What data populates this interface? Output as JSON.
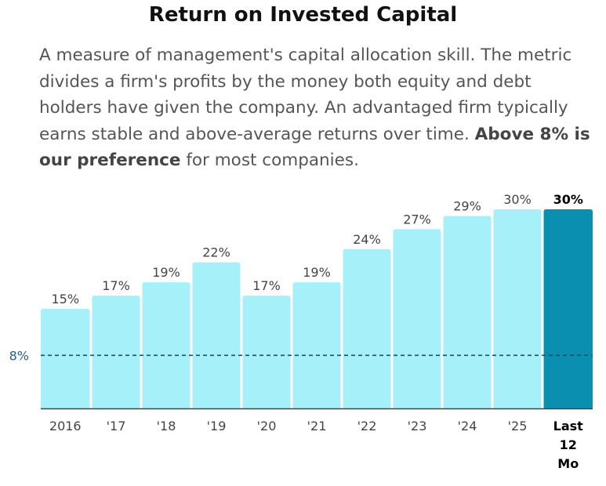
{
  "title": "Return on Invested Capital",
  "description": {
    "text_before": "A measure of management's capital allocation skill. The metric divides a firm's profits by the money both equity and debt holders have given the company. An advantaged firm typically earns stable and above-average returns over time. ",
    "bold_text": "Above 8% is our preference",
    "text_after": " for most companies."
  },
  "chart_data": {
    "type": "bar",
    "title": "Return on Invested Capital",
    "xlabel": "",
    "ylabel": "",
    "ylim": [
      0,
      30
    ],
    "grid": false,
    "categories": [
      "2016",
      "'17",
      "'18",
      "'19",
      "'20",
      "'21",
      "'22",
      "'23",
      "'24",
      "'25",
      "Last 12 Mo"
    ],
    "category_lines": [
      [
        "2016"
      ],
      [
        "'17"
      ],
      [
        "'18"
      ],
      [
        "'19"
      ],
      [
        "'20"
      ],
      [
        "'21"
      ],
      [
        "'22"
      ],
      [
        "'23"
      ],
      [
        "'24"
      ],
      [
        "'25"
      ],
      [
        "Last",
        "12",
        "Mo"
      ]
    ],
    "values": [
      15,
      17,
      19,
      22,
      17,
      19,
      24,
      27,
      29,
      30,
      30
    ],
    "value_labels": [
      "15%",
      "17%",
      "19%",
      "22%",
      "17%",
      "19%",
      "24%",
      "27%",
      "29%",
      "30%",
      "30%"
    ],
    "highlight_index": 10,
    "reference_line": {
      "value": 8,
      "label": "8%"
    },
    "colors": {
      "bar": "#a6f0fa",
      "bar_highlight": "#0a8fb0",
      "reference_line": "#1d4f6b",
      "reference_label": "#2a5f80",
      "axis": "#444444",
      "label": "#444444",
      "label_highlight": "#000000"
    }
  }
}
